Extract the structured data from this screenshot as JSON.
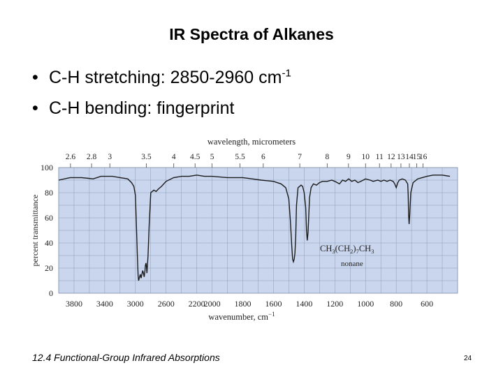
{
  "slide": {
    "title": "IR Spectra of Alkanes",
    "bullets": [
      {
        "text": "C-H stretching: 2850-2960 cm",
        "sup": "-1"
      },
      {
        "text": "C-H bending: fingerprint",
        "sup": ""
      }
    ],
    "footer": "12.4 Functional-Group Infrared Absorptions",
    "page_number": "24"
  },
  "chart_data": {
    "type": "line",
    "title": "",
    "xlabel": "wavenumber, cm",
    "xlabel_sup": "−1",
    "ylabel": "percent transmittance",
    "top_axis_label": "wavelength, micrometers",
    "xlim": [
      4000,
      400
    ],
    "ylim": [
      0,
      100
    ],
    "grid": true,
    "x_ticks": [
      3800,
      3400,
      3000,
      2600,
      2200,
      2000,
      1800,
      1600,
      1400,
      1200,
      1000,
      800,
      600
    ],
    "y_ticks": [
      0,
      20,
      40,
      60,
      80,
      100
    ],
    "top_ticks": [
      "2.6",
      "2.8",
      "3",
      "3.5",
      "4",
      "4.5",
      "5",
      "5.5",
      "6",
      "7",
      "8",
      "9",
      "10",
      "11",
      "12",
      "13",
      "14",
      "15",
      "16"
    ],
    "annotation": {
      "formula_parts": [
        "CH",
        "3",
        "(CH",
        "2",
        ")",
        "7",
        "CH",
        "3"
      ],
      "name": "nonane"
    },
    "series": [
      {
        "x": [
          4000,
          3850,
          3700,
          3550,
          3450,
          3300,
          3200,
          3100,
          3050,
          3020,
          3000,
          2990,
          2975,
          2965,
          2958,
          2945,
          2935,
          2925,
          2915,
          2905,
          2895,
          2885,
          2875,
          2870,
          2862,
          2855,
          2850,
          2845,
          2835,
          2820,
          2800,
          2760,
          2730,
          2700,
          2660,
          2600,
          2500,
          2400,
          2300,
          2200,
          2100,
          2000,
          1900,
          1800,
          1740,
          1680,
          1600,
          1550,
          1520,
          1500,
          1490,
          1480,
          1475,
          1470,
          1465,
          1460,
          1455,
          1450,
          1440,
          1420,
          1410,
          1400,
          1390,
          1385,
          1380,
          1375,
          1370,
          1365,
          1355,
          1340,
          1320,
          1300,
          1280,
          1250,
          1220,
          1200,
          1170,
          1150,
          1130,
          1110,
          1090,
          1070,
          1050,
          1030,
          1000,
          970,
          950,
          920,
          900,
          880,
          860,
          840,
          820,
          810,
          800,
          790,
          780,
          760,
          740,
          725,
          722,
          719,
          716,
          712,
          705,
          690,
          660,
          600,
          560,
          500,
          450
        ],
        "y": [
          90,
          92,
          92,
          91,
          93,
          93,
          92,
          91,
          88,
          85,
          78,
          60,
          30,
          14,
          10,
          13,
          15,
          12,
          15,
          18,
          16,
          13,
          18,
          22,
          24,
          21,
          16,
          20,
          30,
          55,
          80,
          82,
          81,
          83,
          85,
          89,
          92,
          93,
          93,
          94,
          93,
          93,
          92,
          92,
          91,
          90,
          89,
          87,
          84,
          75,
          58,
          36,
          27,
          25,
          27,
          32,
          45,
          70,
          84,
          86,
          85,
          80,
          68,
          50,
          42,
          48,
          62,
          76,
          84,
          87,
          86,
          88,
          89,
          89,
          90,
          89,
          87,
          90,
          89,
          91,
          89,
          90,
          88,
          89,
          91,
          90,
          89,
          90,
          89,
          90,
          89,
          90,
          89,
          87,
          84,
          88,
          90,
          91,
          90,
          87,
          78,
          62,
          55,
          62,
          80,
          88,
          91,
          93,
          94,
          94,
          93
        ]
      }
    ]
  }
}
